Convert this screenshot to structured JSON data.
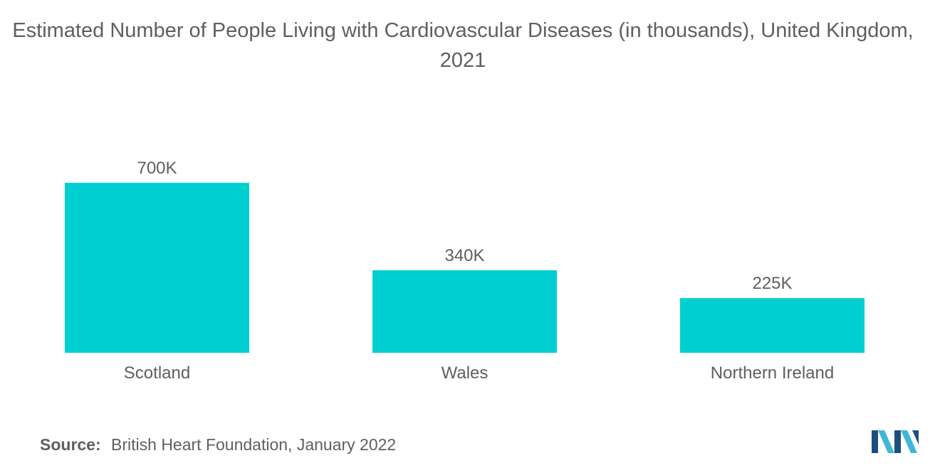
{
  "chart_data": {
    "type": "bar",
    "title": "Estimated Number of People Living with Cardiovascular Diseases (in thousands), United Kingdom, 2021",
    "categories": [
      "Scotland",
      "Wales",
      "Northern Ireland"
    ],
    "values": [
      700,
      340,
      225
    ],
    "value_labels": [
      "700K",
      "340K",
      "225K"
    ],
    "xlabel": "",
    "ylabel": "",
    "ylim": [
      0,
      700
    ],
    "grid": false,
    "legend": "none",
    "bar_color": "#00cfd1"
  },
  "source": {
    "label": "Source:",
    "text": "British Heart Foundation, January 2022"
  },
  "colors": {
    "text": "#5f5f5f",
    "logo_dark": "#1c4f7c",
    "logo_light": "#3fb8d6"
  }
}
